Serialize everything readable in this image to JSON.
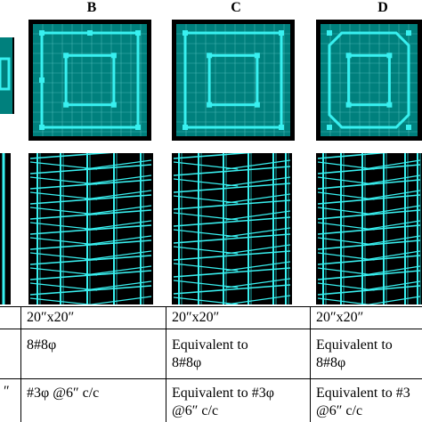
{
  "columns": [
    {
      "label": "B"
    },
    {
      "label": "C"
    },
    {
      "label": "D"
    }
  ],
  "rows": {
    "size": {
      "b": "20″x20″",
      "c": "20″x20″",
      "d": "20″x20″"
    },
    "main_bars": {
      "b": "8#8φ",
      "c_line1": "Equivalent to",
      "c_line2": "8#8φ",
      "d_line1": "Equivalent to",
      "d_line2": "8#8φ"
    },
    "ties": {
      "a_fragment": "″",
      "b": "#3φ @6″ c/c",
      "c_line1": "Equivalent to #3φ",
      "c_line2": "@6″ c/c",
      "d_line1": "Equivalent to #3",
      "d_line2": "@6″ c/c"
    }
  },
  "colors": {
    "model_fill": "#00807d",
    "grid_line": "#5fc8c6",
    "rebar": "#38f0f0",
    "background": "#000000"
  }
}
